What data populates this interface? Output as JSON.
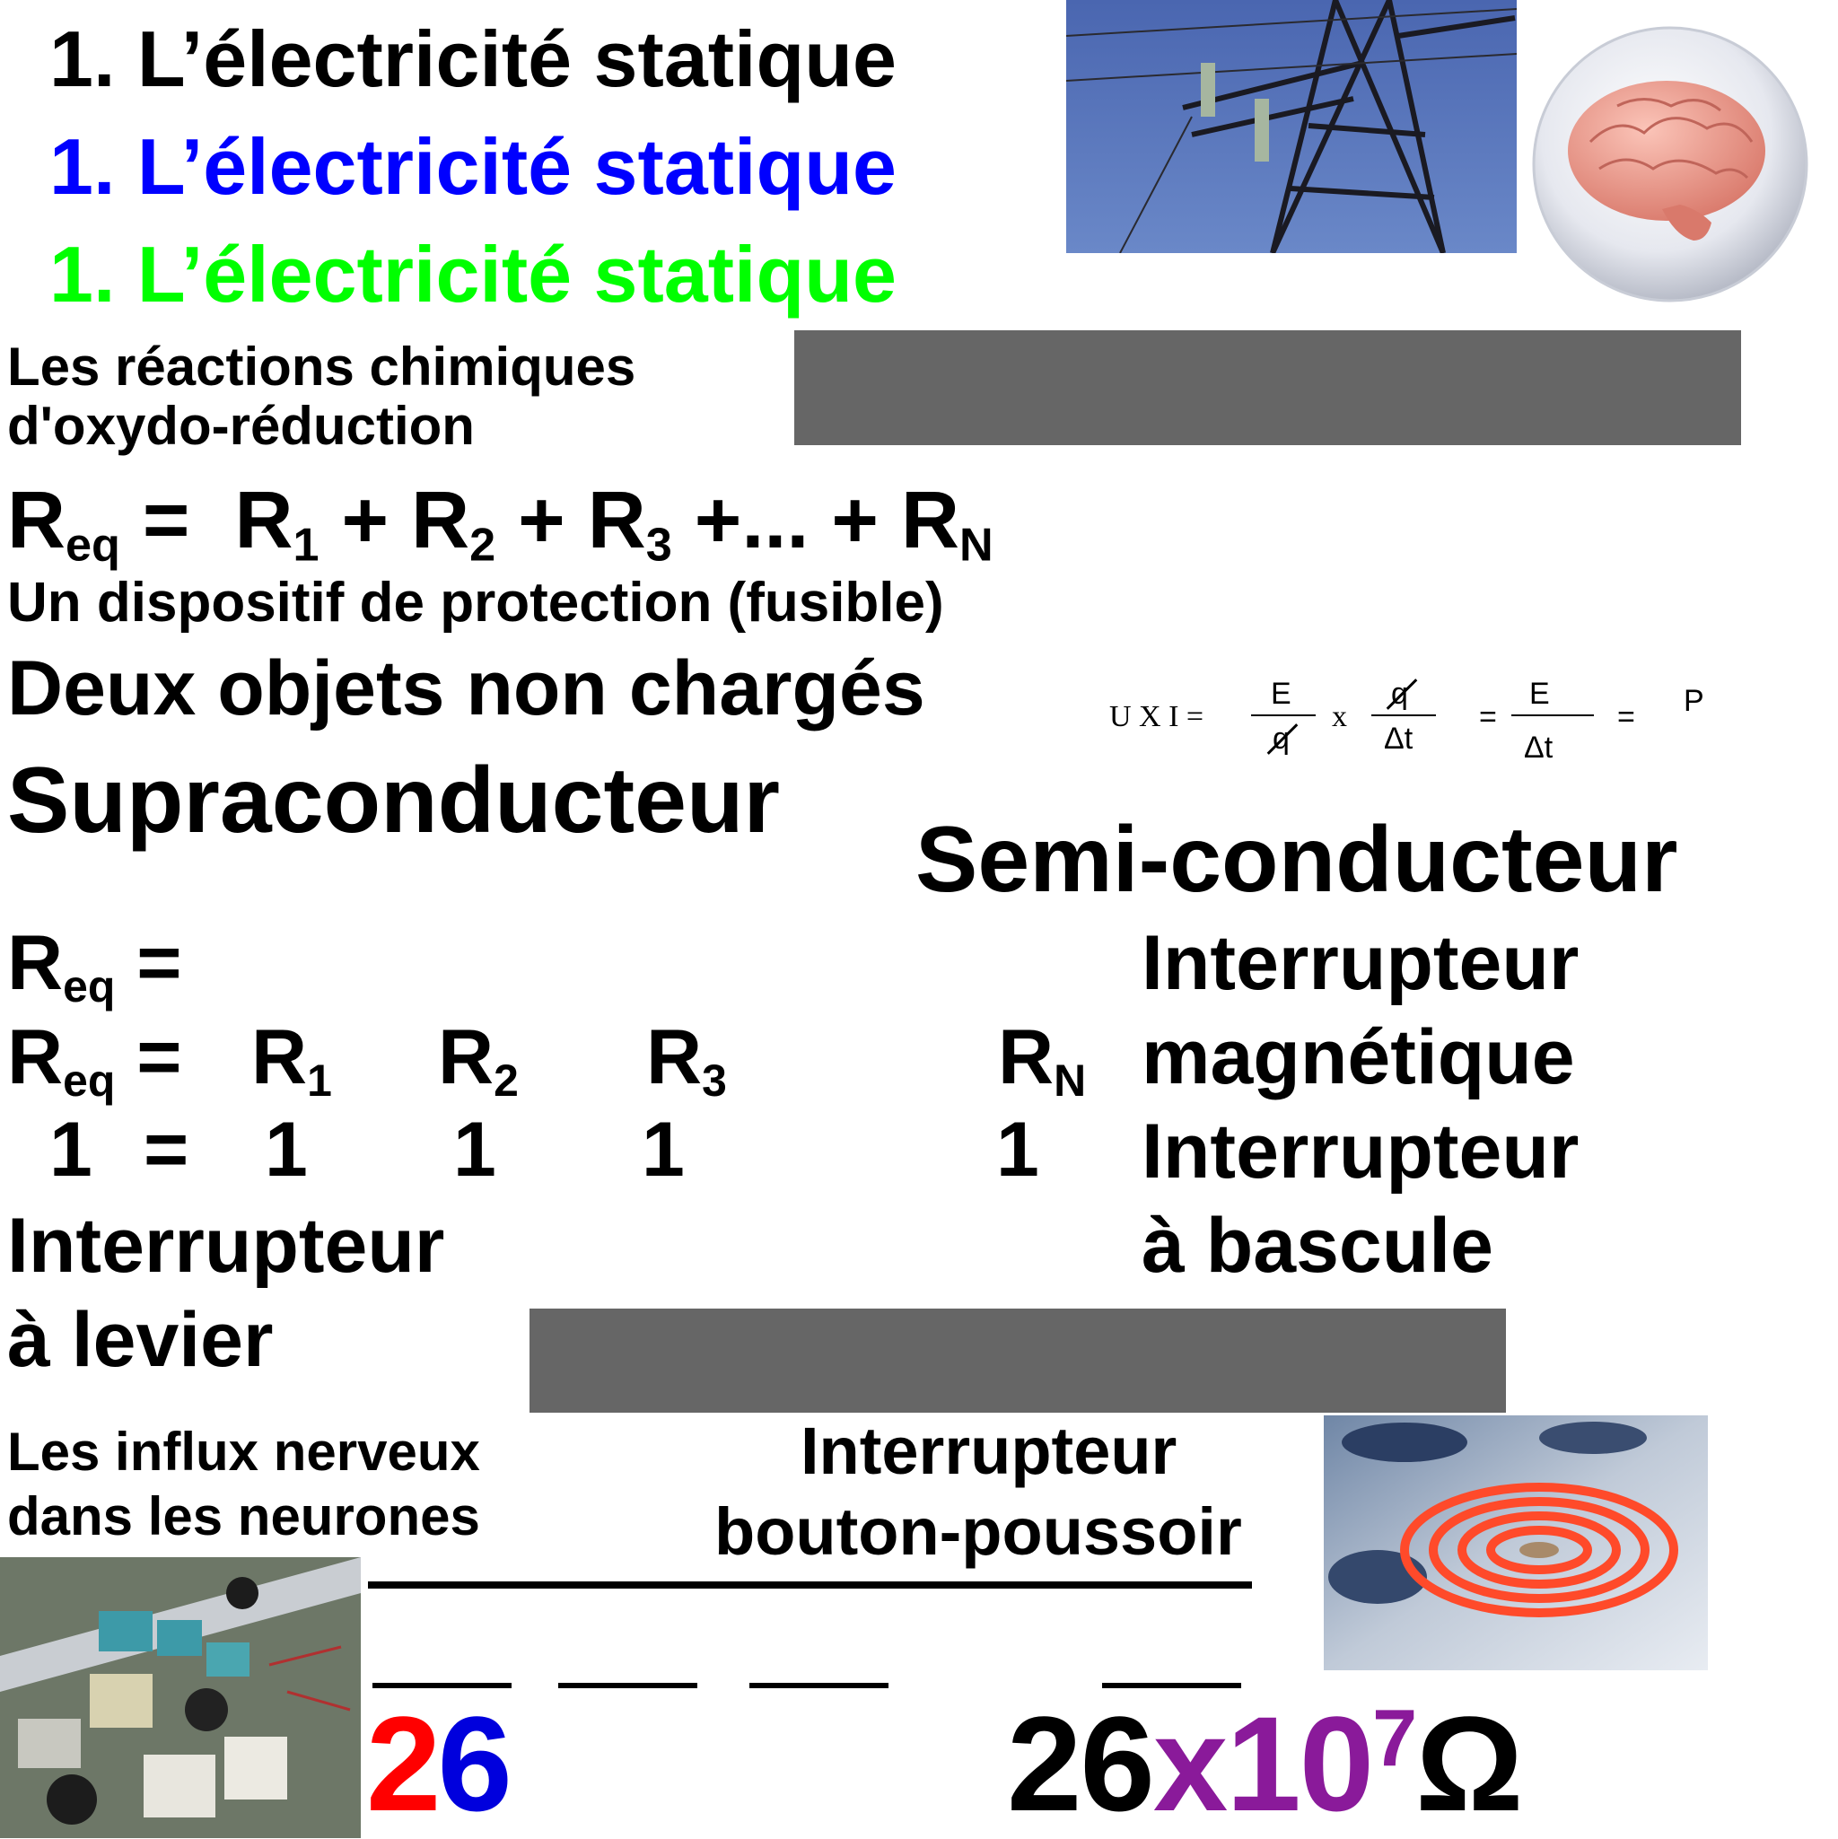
{
  "titles": [
    "1. L’électricité statique",
    "1. L’électricité statique",
    "1. L’électricité statique"
  ],
  "title_colors": [
    "#000000",
    "#0000ff",
    "#00ff00"
  ],
  "reactions": "Les réactions chimiques d'oxydo-réduction",
  "series": {
    "R": "R",
    "eq": "eq",
    "equals": "=",
    "terms": [
      "1",
      "2",
      "3"
    ],
    "ellipsis": "+...",
    "plus": "+",
    "N": "N"
  },
  "fuse": "Un dispositif de protection (fusible)",
  "deux": "Deux objets non chargés",
  "supra": "Supraconducteur",
  "semi": "Semi-conducteur",
  "formula": {
    "lhs": "U X I =",
    "E": "E",
    "q": "q",
    "x": "x",
    "dt": "Δt",
    "eq": "=",
    "P": "P"
  },
  "parallel": {
    "R": "R",
    "eq": "eq",
    "equals": "=",
    "one": "1",
    "subs": [
      "1",
      "2",
      "3",
      "N"
    ]
  },
  "switches": {
    "magnetique": [
      "Interrupteur",
      "magnétique"
    ],
    "bascule": [
      "Interrupteur",
      "à bascule"
    ],
    "levier": [
      "Interrupteur",
      "à levier"
    ],
    "bouton": [
      "Interrupteur",
      "bouton-poussoir"
    ]
  },
  "influx": "Les influx nerveux dans les neurones",
  "number": {
    "d1": "2",
    "d2": "6",
    "big": "26",
    "x": "x",
    "ten": "10",
    "exp": "7",
    "ohm": "Ω"
  },
  "colors": {
    "red": "#ff0000",
    "blue": "#0000dd",
    "purple": "#8a1a9a",
    "gray": "#666666"
  }
}
